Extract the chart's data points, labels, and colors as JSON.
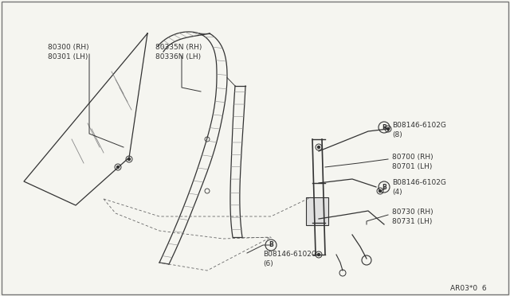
{
  "background_color": "#f5f5f0",
  "border_color": "#555555",
  "dark": "#333333",
  "gray": "#888888",
  "light_gray": "#aaaaaa",
  "diagram_ref": "AR03*0  6",
  "glass_label1": "80300 (RH)",
  "glass_label2": "80301 (LH)",
  "channel_label1": "80335N (RH)",
  "channel_label2": "80336N (LH)",
  "bolt8_label1": "B08146-6102G",
  "bolt8_label2": "(8)",
  "reg_label1": "80700 (RH)",
  "reg_label2": "80701 (LH)",
  "bolt4_label1": "B08146-6102G",
  "bolt4_label2": "(4)",
  "motor_label1": "80730 (RH)",
  "motor_label2": "80731 (LH)",
  "bolt6_label1": "B08146-6102G",
  "bolt6_label2": "(6)"
}
